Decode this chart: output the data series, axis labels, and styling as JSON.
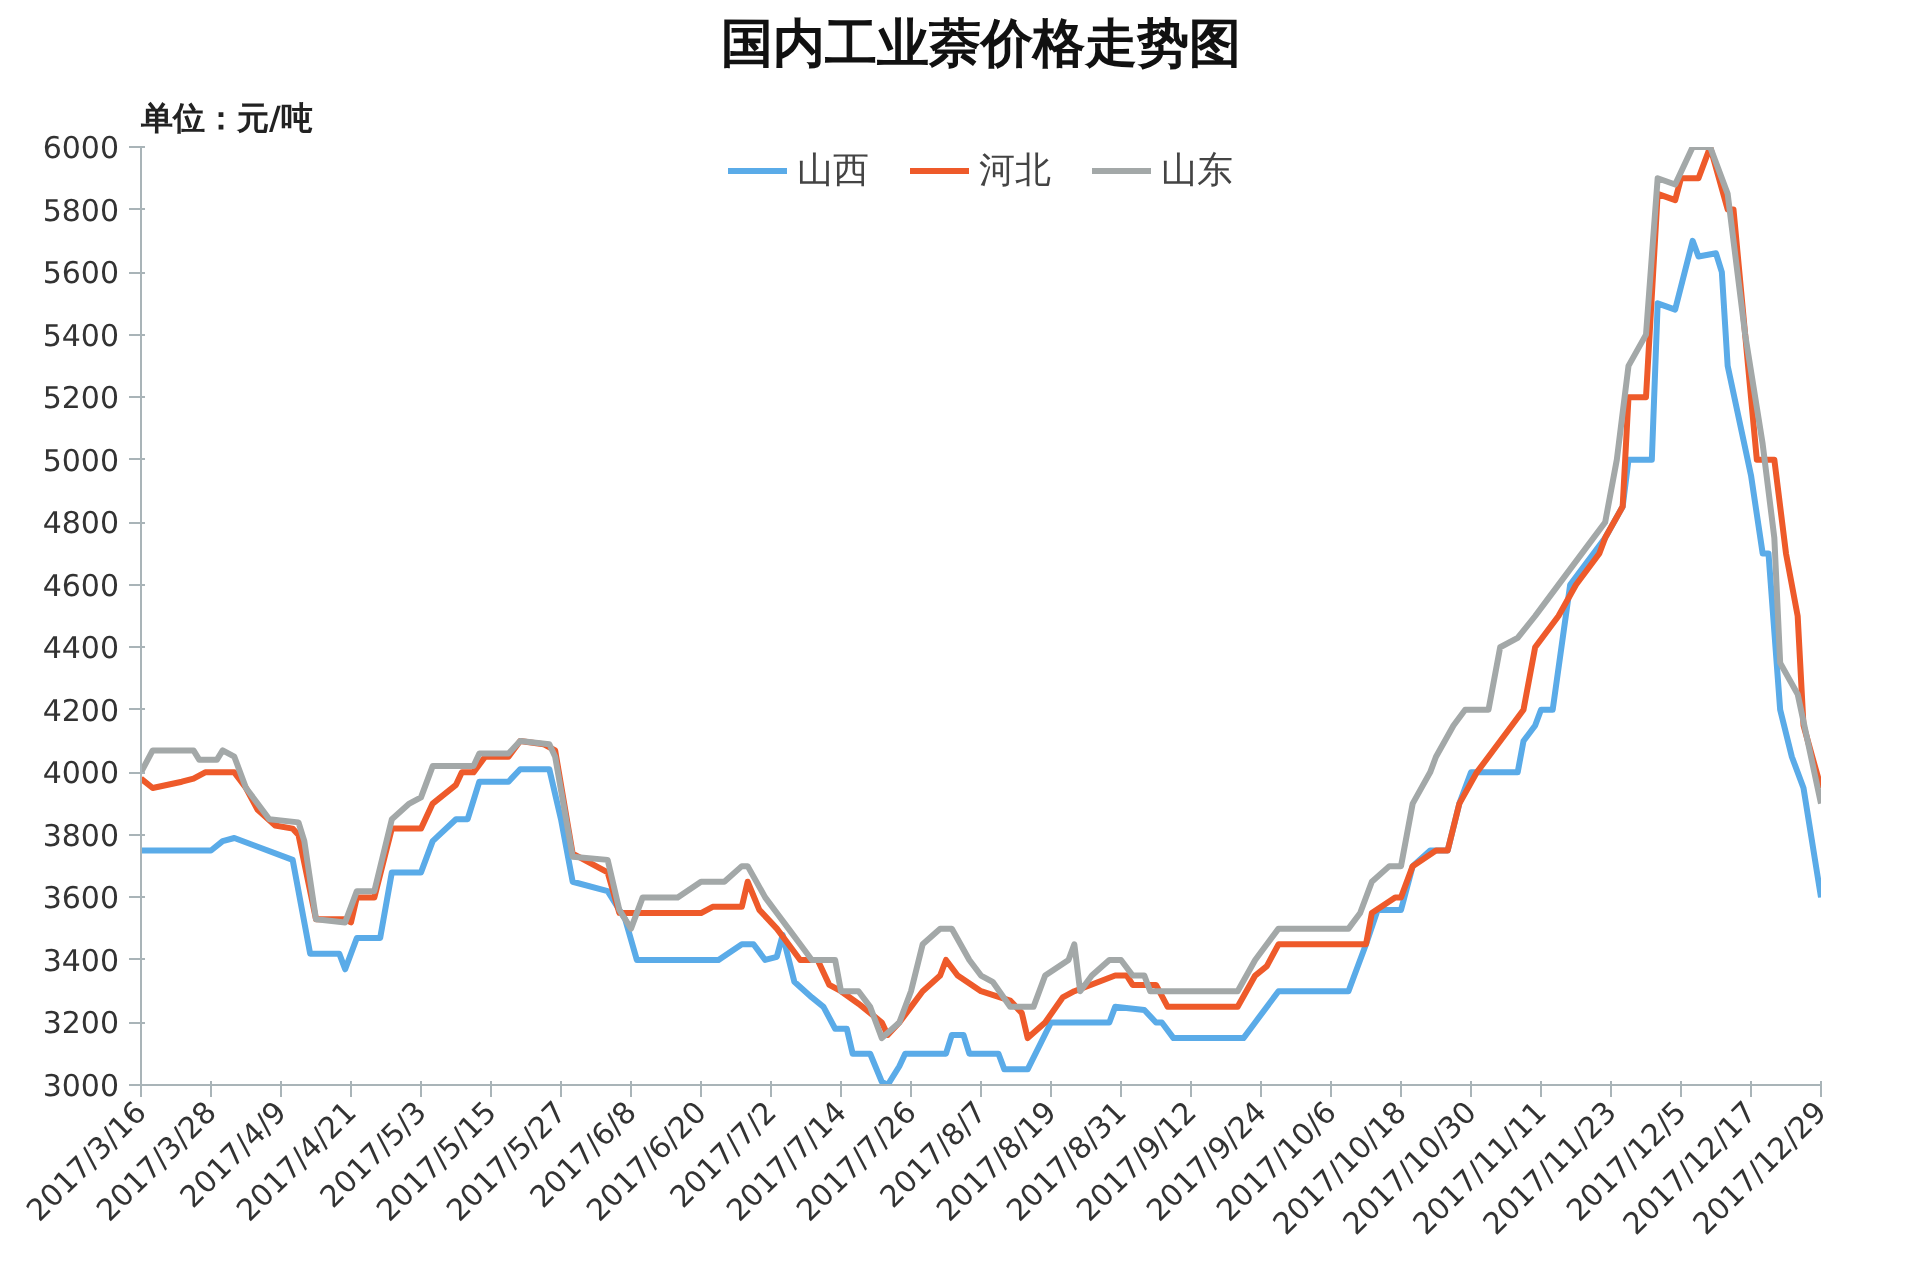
{
  "chart_data": {
    "type": "line",
    "title": "国内工业萘价格走势图",
    "ylabel": "单位：元/吨",
    "legend": "top",
    "grid": false,
    "line_style": "solid",
    "marker": "none",
    "xlim": [
      "2017-03-16",
      "2017-12-29"
    ],
    "xticks": [
      {
        "value": "2017-03-16",
        "label": "2017/3/16"
      },
      {
        "value": "2017-03-28",
        "label": "2017/3/28"
      },
      {
        "value": "2017-04-09",
        "label": "2017/4/9"
      },
      {
        "value": "2017-04-21",
        "label": "2017/4/21"
      },
      {
        "value": "2017-05-03",
        "label": "2017/5/3"
      },
      {
        "value": "2017-05-15",
        "label": "2017/5/15"
      },
      {
        "value": "2017-05-27",
        "label": "2017/5/27"
      },
      {
        "value": "2017-06-08",
        "label": "2017/6/8"
      },
      {
        "value": "2017-06-20",
        "label": "2017/6/20"
      },
      {
        "value": "2017-07-02",
        "label": "2017/7/2"
      },
      {
        "value": "2017-07-14",
        "label": "2017/7/14"
      },
      {
        "value": "2017-07-26",
        "label": "2017/7/26"
      },
      {
        "value": "2017-08-07",
        "label": "2017/8/7"
      },
      {
        "value": "2017-08-19",
        "label": "2017/8/19"
      },
      {
        "value": "2017-08-31",
        "label": "2017/8/31"
      },
      {
        "value": "2017-09-12",
        "label": "2017/9/12"
      },
      {
        "value": "2017-09-24",
        "label": "2017/9/24"
      },
      {
        "value": "2017-10-06",
        "label": "2017/10/6"
      },
      {
        "value": "2017-10-18",
        "label": "2017/10/18"
      },
      {
        "value": "2017-10-30",
        "label": "2017/10/30"
      },
      {
        "value": "2017-11-11",
        "label": "2017/11/11"
      },
      {
        "value": "2017-11-23",
        "label": "2017/11/23"
      },
      {
        "value": "2017-12-05",
        "label": "2017/12/5"
      },
      {
        "value": "2017-12-17",
        "label": "2017/12/17"
      },
      {
        "value": "2017-12-29",
        "label": "2017/12/29"
      }
    ],
    "ylim": [
      3000,
      6000
    ],
    "yticks": [
      3000,
      3200,
      3400,
      3600,
      3800,
      4000,
      4200,
      4400,
      4600,
      4800,
      5000,
      5200,
      5400,
      5600,
      5800,
      6000
    ],
    "series": [
      {
        "name": "山西",
        "color": "#5aabe8",
        "x": [
          "2017-03-16",
          "2017-03-28",
          "2017-03-30",
          "2017-04-01",
          "2017-04-11",
          "2017-04-14",
          "2017-04-19",
          "2017-04-20",
          "2017-04-22",
          "2017-04-26",
          "2017-04-28",
          "2017-05-03",
          "2017-05-05",
          "2017-05-09",
          "2017-05-11",
          "2017-05-13",
          "2017-05-18",
          "2017-05-20",
          "2017-05-25",
          "2017-05-27",
          "2017-05-29",
          "2017-06-04",
          "2017-06-07",
          "2017-06-09",
          "2017-06-23",
          "2017-06-27",
          "2017-06-29",
          "2017-07-01",
          "2017-07-03",
          "2017-07-04",
          "2017-07-06",
          "2017-07-09",
          "2017-07-11",
          "2017-07-13",
          "2017-07-15",
          "2017-07-16",
          "2017-07-19",
          "2017-07-21",
          "2017-07-22",
          "2017-07-24",
          "2017-07-25",
          "2017-08-01",
          "2017-08-02",
          "2017-08-04",
          "2017-08-05",
          "2017-08-10",
          "2017-08-11",
          "2017-08-15",
          "2017-08-19",
          "2017-08-29",
          "2017-08-30",
          "2017-09-04",
          "2017-09-06",
          "2017-09-07",
          "2017-09-09",
          "2017-09-21",
          "2017-09-23",
          "2017-09-27",
          "2017-10-09",
          "2017-10-10",
          "2017-10-12",
          "2017-10-14",
          "2017-10-18",
          "2017-10-20",
          "2017-10-23",
          "2017-10-26",
          "2017-10-28",
          "2017-10-30",
          "2017-11-07",
          "2017-11-08",
          "2017-11-10",
          "2017-11-11",
          "2017-11-13",
          "2017-11-16",
          "2017-11-20",
          "2017-11-22",
          "2017-11-25",
          "2017-11-26",
          "2017-11-30",
          "2017-12-01",
          "2017-12-04",
          "2017-12-07",
          "2017-12-08",
          "2017-12-11",
          "2017-12-12",
          "2017-12-13",
          "2017-12-17",
          "2017-12-19",
          "2017-12-20",
          "2017-12-22",
          "2017-12-24",
          "2017-12-26",
          "2017-12-29"
        ],
        "values": [
          3750,
          3750,
          3780,
          3790,
          3720,
          3420,
          3420,
          3370,
          3470,
          3470,
          3680,
          3680,
          3780,
          3850,
          3850,
          3970,
          3970,
          4010,
          4010,
          3850,
          3650,
          3620,
          3530,
          3400,
          3400,
          3450,
          3450,
          3400,
          3410,
          3480,
          3330,
          3280,
          3250,
          3180,
          3180,
          3100,
          3100,
          3010,
          3000,
          3060,
          3100,
          3100,
          3160,
          3160,
          3100,
          3100,
          3050,
          3050,
          3200,
          3200,
          3250,
          3240,
          3200,
          3200,
          3150,
          3150,
          3200,
          3300,
          3300,
          3350,
          3450,
          3560,
          3560,
          3700,
          3750,
          3750,
          3900,
          4000,
          4000,
          4100,
          4150,
          4200,
          4200,
          4600,
          4700,
          4750,
          4850,
          5000,
          5000,
          5500,
          5480,
          5700,
          5650,
          5660,
          5600,
          5300,
          4950,
          4700,
          4700,
          4200,
          4050,
          3950,
          3600
        ]
      },
      {
        "name": "河北",
        "color": "#ee5a2a",
        "x": [
          "2017-03-16",
          "2017-03-18",
          "2017-03-23",
          "2017-03-25",
          "2017-03-27",
          "2017-04-01",
          "2017-04-03",
          "2017-04-05",
          "2017-04-08",
          "2017-04-11",
          "2017-04-12",
          "2017-04-15",
          "2017-04-20",
          "2017-04-21",
          "2017-04-22",
          "2017-04-25",
          "2017-04-28",
          "2017-05-03",
          "2017-05-05",
          "2017-05-09",
          "2017-05-10",
          "2017-05-12",
          "2017-05-14",
          "2017-05-18",
          "2017-05-20",
          "2017-05-24",
          "2017-05-26",
          "2017-05-29",
          "2017-06-02",
          "2017-06-04",
          "2017-06-06",
          "2017-06-20",
          "2017-06-22",
          "2017-06-27",
          "2017-06-28",
          "2017-06-30",
          "2017-07-03",
          "2017-07-05",
          "2017-07-07",
          "2017-07-10",
          "2017-07-12",
          "2017-07-14",
          "2017-07-17",
          "2017-07-21",
          "2017-07-22",
          "2017-07-24",
          "2017-07-26",
          "2017-07-28",
          "2017-07-31",
          "2017-08-01",
          "2017-08-03",
          "2017-08-07",
          "2017-08-12",
          "2017-08-14",
          "2017-08-15",
          "2017-08-18",
          "2017-08-21",
          "2017-08-23",
          "2017-08-30",
          "2017-09-01",
          "2017-09-02",
          "2017-09-06",
          "2017-09-08",
          "2017-09-20",
          "2017-09-23",
          "2017-09-25",
          "2017-09-27",
          "2017-10-12",
          "2017-10-13",
          "2017-10-17",
          "2017-10-18",
          "2017-10-20",
          "2017-10-24",
          "2017-10-26",
          "2017-10-28",
          "2017-10-31",
          "2017-11-02",
          "2017-11-06",
          "2017-11-08",
          "2017-11-10",
          "2017-11-14",
          "2017-11-17",
          "2017-11-21",
          "2017-11-22",
          "2017-11-25",
          "2017-11-26",
          "2017-11-29",
          "2017-12-01",
          "2017-12-04",
          "2017-12-05",
          "2017-12-08",
          "2017-12-10",
          "2017-12-13",
          "2017-12-14",
          "2017-12-17",
          "2017-12-18",
          "2017-12-21",
          "2017-12-23",
          "2017-12-25",
          "2017-12-26",
          "2017-12-29"
        ],
        "values": [
          3980,
          3950,
          3970,
          3980,
          4000,
          4000,
          3950,
          3880,
          3830,
          3820,
          3800,
          3530,
          3530,
          3520,
          3600,
          3600,
          3820,
          3820,
          3900,
          3960,
          4000,
          4000,
          4050,
          4050,
          4100,
          4090,
          4070,
          3740,
          3700,
          3680,
          3550,
          3550,
          3570,
          3570,
          3650,
          3560,
          3500,
          3450,
          3400,
          3400,
          3320,
          3300,
          3260,
          3200,
          3160,
          3200,
          3250,
          3300,
          3350,
          3400,
          3350,
          3300,
          3270,
          3230,
          3150,
          3200,
          3280,
          3300,
          3350,
          3350,
          3320,
          3320,
          3250,
          3250,
          3350,
          3380,
          3450,
          3450,
          3550,
          3600,
          3600,
          3700,
          3750,
          3750,
          3900,
          4000,
          4050,
          4150,
          4200,
          4400,
          4500,
          4600,
          4700,
          4750,
          4850,
          5200,
          5200,
          5850,
          5830,
          5900,
          5900,
          6000,
          5800,
          5800,
          5200,
          5000,
          5000,
          4700,
          4500,
          4150,
          3950
        ]
      },
      {
        "name": "山东",
        "color": "#a3a8a8",
        "x": [
          "2017-03-16",
          "2017-03-18",
          "2017-03-25",
          "2017-03-26",
          "2017-03-29",
          "2017-03-30",
          "2017-04-01",
          "2017-04-03",
          "2017-04-07",
          "2017-04-12",
          "2017-04-13",
          "2017-04-15",
          "2017-04-20",
          "2017-04-22",
          "2017-04-25",
          "2017-04-28",
          "2017-05-01",
          "2017-05-03",
          "2017-05-05",
          "2017-05-12",
          "2017-05-13",
          "2017-05-18",
          "2017-05-20",
          "2017-05-25",
          "2017-05-26",
          "2017-05-29",
          "2017-06-04",
          "2017-06-06",
          "2017-06-08",
          "2017-06-10",
          "2017-06-16",
          "2017-06-20",
          "2017-06-24",
          "2017-06-27",
          "2017-06-28",
          "2017-07-01",
          "2017-07-03",
          "2017-07-05",
          "2017-07-07",
          "2017-07-09",
          "2017-07-13",
          "2017-07-14",
          "2017-07-17",
          "2017-07-19",
          "2017-07-21",
          "2017-07-24",
          "2017-07-26",
          "2017-07-28",
          "2017-07-31",
          "2017-08-02",
          "2017-08-05",
          "2017-08-07",
          "2017-08-09",
          "2017-08-12",
          "2017-08-16",
          "2017-08-18",
          "2017-08-22",
          "2017-08-23",
          "2017-08-24",
          "2017-08-26",
          "2017-08-29",
          "2017-08-31",
          "2017-09-02",
          "2017-09-04",
          "2017-09-05",
          "2017-09-20",
          "2017-09-23",
          "2017-09-25",
          "2017-09-27",
          "2017-10-09",
          "2017-10-11",
          "2017-10-13",
          "2017-10-16",
          "2017-10-18",
          "2017-10-20",
          "2017-10-23",
          "2017-10-24",
          "2017-10-27",
          "2017-10-29",
          "2017-11-02",
          "2017-11-04",
          "2017-11-07",
          "2017-11-10",
          "2017-11-12",
          "2017-11-16",
          "2017-11-20",
          "2017-11-22",
          "2017-11-24",
          "2017-11-26",
          "2017-11-29",
          "2017-12-01",
          "2017-12-04",
          "2017-12-07",
          "2017-12-10",
          "2017-12-13",
          "2017-12-16",
          "2017-12-19",
          "2017-12-21",
          "2017-12-22",
          "2017-12-25",
          "2017-12-29"
        ],
        "values": [
          4000,
          4070,
          4070,
          4040,
          4040,
          4070,
          4050,
          3950,
          3850,
          3840,
          3780,
          3530,
          3520,
          3620,
          3620,
          3850,
          3900,
          3920,
          4020,
          4020,
          4060,
          4060,
          4100,
          4090,
          4050,
          3730,
          3720,
          3560,
          3500,
          3600,
          3600,
          3650,
          3650,
          3700,
          3700,
          3600,
          3550,
          3500,
          3450,
          3400,
          3400,
          3300,
          3300,
          3250,
          3150,
          3200,
          3300,
          3450,
          3500,
          3500,
          3400,
          3350,
          3330,
          3250,
          3250,
          3350,
          3400,
          3450,
          3300,
          3350,
          3400,
          3400,
          3350,
          3350,
          3300,
          3300,
          3400,
          3450,
          3500,
          3500,
          3550,
          3650,
          3700,
          3700,
          3900,
          4000,
          4050,
          4150,
          4200,
          4200,
          4400,
          4430,
          4500,
          4550,
          4650,
          4750,
          4800,
          5000,
          5300,
          5400,
          5900,
          5880,
          6000,
          6000,
          5850,
          5400,
          5050,
          4750,
          4350,
          4250,
          3900
        ]
      }
    ]
  }
}
